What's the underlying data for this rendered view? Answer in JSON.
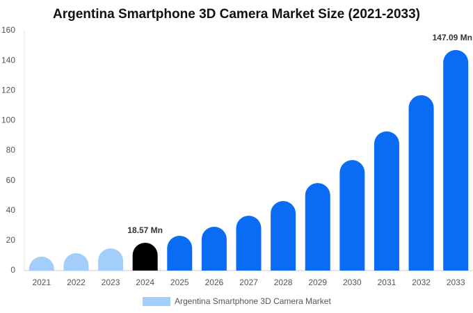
{
  "chart_data": {
    "type": "bar",
    "title": "Argentina Smartphone 3D Camera Market Size (2021-2033)",
    "categories": [
      "2021",
      "2022",
      "2023",
      "2024",
      "2025",
      "2026",
      "2027",
      "2028",
      "2029",
      "2030",
      "2031",
      "2032",
      "2033"
    ],
    "series": [
      {
        "name": "Argentina Smartphone 3D Camera Market",
        "color": "#a3cdfb",
        "values": [
          9.3,
          11.6,
          14.8,
          18.57,
          23.2,
          29.2,
          36.6,
          46.4,
          58.4,
          73.7,
          92.8,
          116.9,
          147.09
        ],
        "colors": [
          "#a3cdfb",
          "#a3cdfb",
          "#a3cdfb",
          "#000000",
          "#0a6cf5",
          "#0a6cf5",
          "#0a6cf5",
          "#0a6cf5",
          "#0a6cf5",
          "#0a6cf5",
          "#0a6cf5",
          "#0a6cf5",
          "#0a6cf5"
        ],
        "value_labels": [
          null,
          null,
          null,
          "18.57 Mn",
          null,
          null,
          null,
          null,
          null,
          null,
          null,
          null,
          "147.09 Mn"
        ]
      }
    ],
    "ylim": [
      0,
      160
    ],
    "yticks": [
      0,
      20,
      40,
      60,
      80,
      100,
      120,
      140,
      160
    ],
    "grid": false
  }
}
